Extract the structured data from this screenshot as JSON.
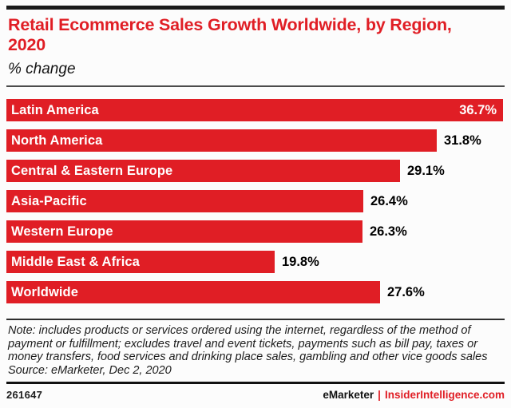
{
  "page": {
    "background": "#fcfcfc"
  },
  "colors": {
    "accent_red": "#e01e25",
    "rule_dark": "#1a1a1a",
    "rule_gray": "#4c4c4c",
    "text_dark": "#1c1c1c"
  },
  "header": {
    "title": "Retail Ecommerce Sales Growth Worldwide, by Region, 2020",
    "subtitle": "% change"
  },
  "chart_data": {
    "type": "bar",
    "orientation": "horizontal",
    "title": "Retail Ecommerce Sales Growth Worldwide, by Region, 2020",
    "units": "% change",
    "categories": [
      "Latin America",
      "North America",
      "Central & Eastern Europe",
      "Asia-Pacific",
      "Western Europe",
      "Middle East & Africa",
      "Worldwide"
    ],
    "values": [
      36.7,
      31.8,
      29.1,
      26.4,
      26.3,
      19.8,
      27.6
    ],
    "value_labels": [
      "36.7%",
      "31.8%",
      "29.1%",
      "26.4%",
      "26.3%",
      "19.8%",
      "27.6%"
    ],
    "xlim": [
      0,
      36.7
    ],
    "bar_color": "#e01e25",
    "bar_text_color": "#ffffff",
    "value_label_position": "outside-right",
    "value_label_position_first_bar": "inside-right",
    "grid": false,
    "legend": false
  },
  "footnote": {
    "note_lines": [
      "Note: includes products or services ordered using the internet, regardless of the method of",
      "payment or fulfillment; excludes travel and event tickets, payments such as bill pay, taxes or",
      "money transfers, food services and drinking place sales, gambling and other vice goods sales"
    ],
    "source": "Source: eMarketer, Dec 2, 2020"
  },
  "footer": {
    "chart_id": "261647",
    "brand": "eMarketer",
    "separator": "|",
    "site": "InsiderIntelligence.com"
  }
}
